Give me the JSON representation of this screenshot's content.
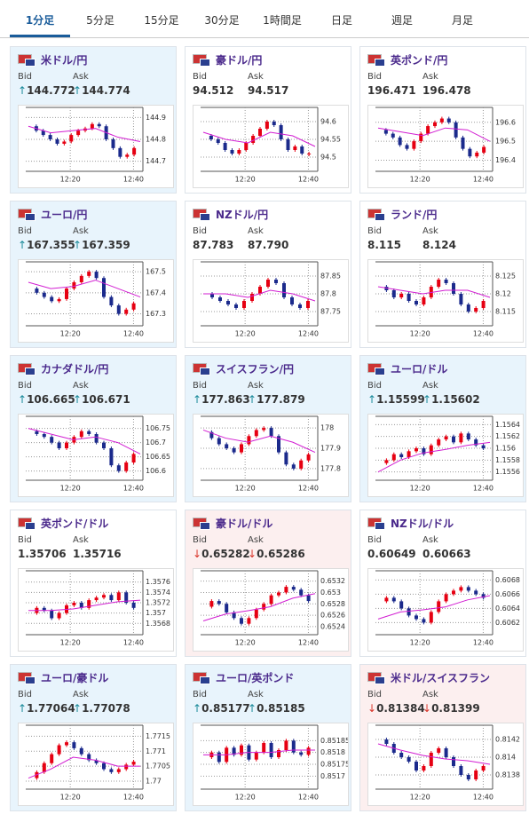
{
  "tabs": [
    "1分足",
    "5分足",
    "15分足",
    "30分足",
    "1時間足",
    "日足",
    "週足",
    "月足"
  ],
  "cards": [
    {
      "title": "米ドル/円",
      "bid_label": "Bid",
      "ask_label": "Ask",
      "bid": "144.772",
      "ask": "144.774",
      "direction": "up",
      "chart": {
        "ylim": [
          144.67,
          144.93
        ],
        "yticks": [
          144.7,
          144.8,
          144.9
        ],
        "xlabels": [
          "12:20",
          "12:40"
        ],
        "closes": [
          144.86,
          144.84,
          144.82,
          144.8,
          144.78,
          144.79,
          144.82,
          144.84,
          144.85,
          144.87,
          144.86,
          144.8,
          144.76,
          144.72,
          144.73,
          144.76
        ],
        "ma": [
          144.86,
          144.83,
          144.84,
          144.85,
          144.81,
          144.79
        ]
      }
    },
    {
      "title": "豪ドル/円",
      "bid_label": "Bid",
      "ask_label": "Ask",
      "bid": "94.512",
      "ask": "94.517",
      "direction": "none",
      "chart": {
        "ylim": [
          94.47,
          94.63
        ],
        "yticks": [
          94.5,
          94.55,
          94.6
        ],
        "xlabels": [
          "12:20",
          "12:40"
        ],
        "closes": [
          94.56,
          94.55,
          94.54,
          94.52,
          94.51,
          94.52,
          94.54,
          94.56,
          94.58,
          94.6,
          94.59,
          94.55,
          94.52,
          94.53,
          94.51,
          94.51
        ],
        "ma": [
          94.57,
          94.55,
          94.54,
          94.57,
          94.56,
          94.53
        ]
      }
    },
    {
      "title": "英ポンド/円",
      "bid_label": "Bid",
      "ask_label": "Ask",
      "bid": "196.471",
      "ask": "196.478",
      "direction": "none",
      "chart": {
        "ylim": [
          196.36,
          196.66
        ],
        "yticks": [
          196.4,
          196.5,
          196.6
        ],
        "xlabels": [
          "12:20",
          "12:40"
        ],
        "closes": [
          196.56,
          196.54,
          196.52,
          196.48,
          196.46,
          196.5,
          196.54,
          196.58,
          196.6,
          196.62,
          196.6,
          196.52,
          196.46,
          196.42,
          196.44,
          196.47
        ],
        "ma": [
          196.57,
          196.55,
          196.53,
          196.57,
          196.56,
          196.5
        ]
      }
    },
    {
      "title": "ユーロ/円",
      "bid_label": "Bid",
      "ask_label": "Ask",
      "bid": "167.355",
      "ask": "167.359",
      "direction": "up",
      "chart": {
        "ylim": [
          167.26,
          167.53
        ],
        "yticks": [
          167.3,
          167.4,
          167.5
        ],
        "xlabels": [
          "12:20",
          "12:40"
        ],
        "closes": [
          167.42,
          167.4,
          167.38,
          167.36,
          167.37,
          167.42,
          167.45,
          167.48,
          167.5,
          167.47,
          167.38,
          167.34,
          167.3,
          167.32,
          167.35
        ],
        "ma": [
          167.45,
          167.42,
          167.43,
          167.46,
          167.42,
          167.38
        ]
      }
    },
    {
      "title": "NZドル/円",
      "bid_label": "Bid",
      "ask_label": "Ask",
      "bid": "87.783",
      "ask": "87.790",
      "direction": "none",
      "chart": {
        "ylim": [
          87.72,
          87.88
        ],
        "yticks": [
          87.75,
          87.8,
          87.85
        ],
        "xlabels": [
          "12:20",
          "12:40"
        ],
        "closes": [
          87.8,
          87.79,
          87.78,
          87.77,
          87.76,
          87.78,
          87.8,
          87.82,
          87.84,
          87.83,
          87.79,
          87.77,
          87.76,
          87.78
        ],
        "ma": [
          87.8,
          87.8,
          87.79,
          87.81,
          87.8,
          87.78
        ]
      }
    },
    {
      "title": "ランド/円",
      "bid_label": "Bid",
      "ask_label": "Ask",
      "bid": "8.115",
      "ask": "8.124",
      "direction": "none",
      "chart": {
        "ylim": [
          8.112,
          8.128
        ],
        "yticks": [
          8.115,
          8.12,
          8.125
        ],
        "xlabels": [
          "12:20",
          "12:40"
        ],
        "closes": [
          8.122,
          8.121,
          8.119,
          8.12,
          8.118,
          8.117,
          8.119,
          8.122,
          8.124,
          8.123,
          8.12,
          8.117,
          8.115,
          8.116,
          8.118
        ],
        "ma": [
          8.122,
          8.121,
          8.12,
          8.121,
          8.121,
          8.119
        ]
      }
    },
    {
      "title": "カナダドル/円",
      "bid_label": "Bid",
      "ask_label": "Ask",
      "bid": "106.665",
      "ask": "106.671",
      "direction": "up",
      "chart": {
        "ylim": [
          106.58,
          106.78
        ],
        "yticks": [
          106.6,
          106.65,
          106.7,
          106.75
        ],
        "xlabels": [
          "12:20",
          "12:40"
        ],
        "closes": [
          106.74,
          106.73,
          106.72,
          106.7,
          106.68,
          106.7,
          106.72,
          106.74,
          106.73,
          106.7,
          106.68,
          106.62,
          106.6,
          106.63,
          106.66
        ],
        "ma": [
          106.75,
          106.73,
          106.71,
          106.72,
          106.7,
          106.66
        ]
      }
    },
    {
      "title": "スイスフラン/円",
      "bid_label": "Bid",
      "ask_label": "Ask",
      "bid": "177.863",
      "ask": "177.879",
      "direction": "up",
      "chart": {
        "ylim": [
          177.76,
          178.04
        ],
        "yticks": [
          177.8,
          177.9,
          178
        ],
        "xlabels": [
          "12:20",
          "12:40"
        ],
        "closes": [
          177.98,
          177.95,
          177.92,
          177.9,
          177.88,
          177.92,
          177.96,
          177.99,
          178,
          177.96,
          177.88,
          177.82,
          177.8,
          177.84,
          177.87
        ],
        "ma": [
          177.99,
          177.95,
          177.93,
          177.96,
          177.93,
          177.88
        ]
      }
    },
    {
      "title": "ユーロ/ドル",
      "bid_label": "Bid",
      "ask_label": "Ask",
      "bid": "1.15599",
      "ask": "1.15602",
      "direction": "up",
      "chart": {
        "ylim": [
          1.15552,
          1.15648
        ],
        "yticks": [
          1.1556,
          1.1558,
          1.156,
          1.1562,
          1.1564
        ],
        "xlabels": [
          "12:20",
          "12:40"
        ],
        "closes": [
          1.15575,
          1.1558,
          1.1559,
          1.15585,
          1.15595,
          1.156,
          1.1559,
          1.15605,
          1.15615,
          1.1562,
          1.1561,
          1.15625,
          1.15615,
          1.15605,
          1.156
        ],
        "ma": [
          1.1556,
          1.1558,
          1.15592,
          1.15598,
          1.15605,
          1.1561
        ]
      }
    },
    {
      "title": "英ポンド/ドル",
      "bid_label": "Bid",
      "ask_label": "Ask",
      "bid": "1.35706",
      "ask": "1.35716",
      "direction": "none",
      "chart": {
        "ylim": [
          1.35665,
          1.35775
        ],
        "yticks": [
          1.3568,
          1.357,
          1.3572,
          1.3574,
          1.3576
        ],
        "xlabels": [
          "12:20",
          "12:40"
        ],
        "closes": [
          1.357,
          1.3571,
          1.35705,
          1.3569,
          1.357,
          1.35715,
          1.3572,
          1.3571,
          1.35725,
          1.3573,
          1.35735,
          1.35725,
          1.3574,
          1.3572,
          1.3571
        ],
        "ma": [
          1.35705,
          1.35705,
          1.35708,
          1.35715,
          1.35722,
          1.35725
        ]
      }
    },
    {
      "title": "豪ドル/ドル",
      "bid_label": "Bid",
      "ask_label": "Ask",
      "bid": "0.65282",
      "ask": "0.65286",
      "direction": "down",
      "chart": {
        "ylim": [
          0.65232,
          0.65332
        ],
        "yticks": [
          0.6524,
          0.6526,
          0.6528,
          0.653,
          0.6532
        ],
        "xlabels": [
          "12:20",
          "12:40"
        ],
        "closes": [
          0.65275,
          0.65285,
          0.6528,
          0.65265,
          0.65255,
          0.65245,
          0.65255,
          0.6527,
          0.6528,
          0.65295,
          0.653,
          0.6531,
          0.65305,
          0.65295,
          0.65285
        ],
        "ma": [
          0.6525,
          0.65262,
          0.65268,
          0.65275,
          0.6529,
          0.65298
        ]
      }
    },
    {
      "title": "NZドル/ドル",
      "bid_label": "Bid",
      "ask_label": "Ask",
      "bid": "0.60649",
      "ask": "0.60663",
      "direction": "none",
      "chart": {
        "ylim": [
          0.60608,
          0.60688
        ],
        "yticks": [
          0.6062,
          0.6064,
          0.6066,
          0.6068
        ],
        "xlabels": [
          "12:20",
          "12:40"
        ],
        "closes": [
          0.6065,
          0.60655,
          0.6065,
          0.6064,
          0.6063,
          0.60625,
          0.6062,
          0.60635,
          0.6065,
          0.6066,
          0.60665,
          0.6067,
          0.60665,
          0.6066,
          0.60655
        ],
        "ma": [
          0.60625,
          0.60635,
          0.60638,
          0.60642,
          0.60652,
          0.60658
        ]
      }
    },
    {
      "title": "ユーロ/豪ドル",
      "bid_label": "Bid",
      "ask_label": "Ask",
      "bid": "1.77064",
      "ask": "1.77078",
      "direction": "up",
      "chart": {
        "ylim": [
          1.76985,
          1.77175
        ],
        "yticks": [
          1.77,
          1.7705,
          1.771,
          1.7715
        ],
        "xlabels": [
          "12:20",
          "12:40"
        ],
        "closes": [
          1.7701,
          1.7703,
          1.7706,
          1.7709,
          1.7712,
          1.7713,
          1.7711,
          1.7709,
          1.7707,
          1.7706,
          1.7704,
          1.7703,
          1.7704,
          1.77055,
          1.77065
        ],
        "ma": [
          1.7701,
          1.7704,
          1.7708,
          1.7707,
          1.7705,
          1.7705
        ]
      }
    },
    {
      "title": "ユーロ/英ポンド",
      "bid_label": "Bid",
      "ask_label": "Ask",
      "bid": "0.85177",
      "ask": "0.85185",
      "direction": "up",
      "chart": {
        "ylim": [
          0.85166,
          0.8519
        ],
        "yticks": [
          0.8517,
          0.85175,
          0.8518,
          0.85185
        ],
        "xlabels": [
          "12:20",
          "12:40"
        ],
        "closes": [
          0.85178,
          0.8518,
          0.85176,
          0.85182,
          0.85179,
          0.85183,
          0.85177,
          0.8518,
          0.85184,
          0.85178,
          0.85181,
          0.85185,
          0.8518,
          0.85179,
          0.85182
        ],
        "ma": [
          0.85179,
          0.85179,
          0.8518,
          0.8518,
          0.85181,
          0.85181
        ]
      }
    },
    {
      "title": "米ドル/スイスフラン",
      "bid_label": "Bid",
      "ask_label": "Ask",
      "bid": "0.81384",
      "ask": "0.81399",
      "direction": "down",
      "chart": {
        "ylim": [
          0.81368,
          0.81432
        ],
        "yticks": [
          0.8138,
          0.814,
          0.8142
        ],
        "xlabels": [
          "12:20",
          "12:40"
        ],
        "closes": [
          0.8142,
          0.81415,
          0.81405,
          0.814,
          0.81395,
          0.81385,
          0.8139,
          0.81405,
          0.8141,
          0.814,
          0.8139,
          0.8138,
          0.81375,
          0.81385,
          0.8139
        ],
        "ma": [
          0.81415,
          0.81408,
          0.81402,
          0.81398,
          0.81396,
          0.81392
        ]
      }
    }
  ]
}
